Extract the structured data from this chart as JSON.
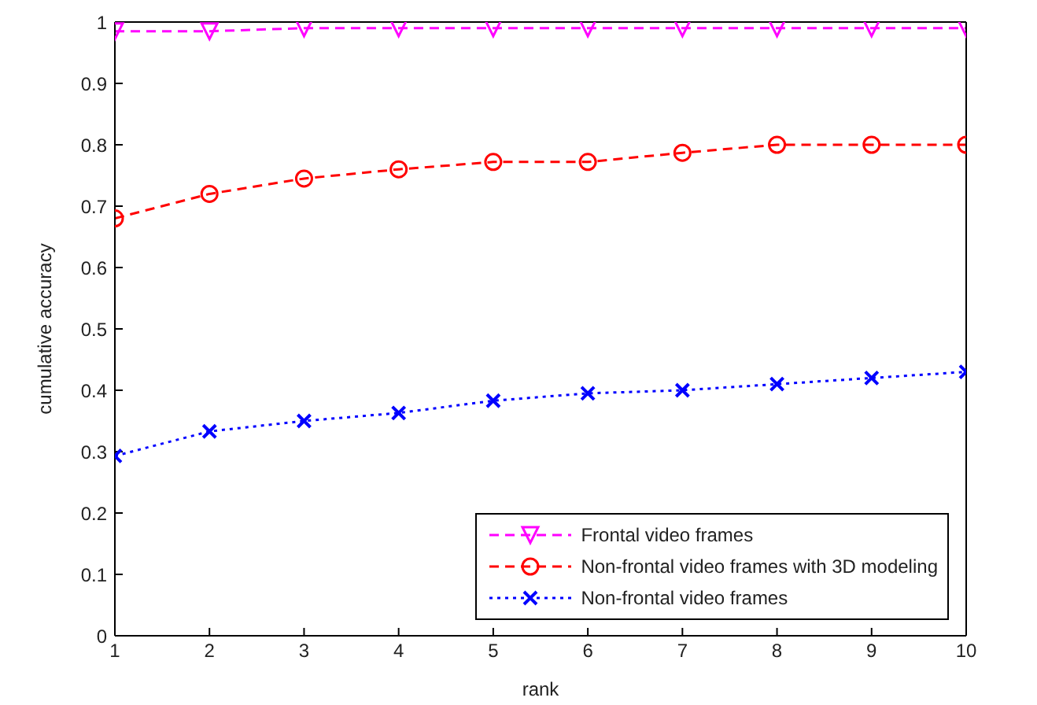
{
  "chart_data": {
    "type": "line",
    "xlabel": "rank",
    "ylabel": "cumulative accuracy",
    "x": [
      1,
      2,
      3,
      4,
      5,
      6,
      7,
      8,
      9,
      10
    ],
    "series": [
      {
        "name": "Frontal video frames",
        "color": "#ff00ff",
        "marker": "triangle",
        "line_style": "dashed",
        "values": [
          0.985,
          0.985,
          0.99,
          0.99,
          0.99,
          0.99,
          0.99,
          0.99,
          0.99,
          0.99
        ]
      },
      {
        "name": "Non-frontal video frames with 3D modeling",
        "color": "#ff0000",
        "marker": "circle",
        "line_style": "dashed",
        "values": [
          0.68,
          0.72,
          0.745,
          0.76,
          0.772,
          0.772,
          0.787,
          0.8,
          0.8,
          0.8
        ]
      },
      {
        "name": "Non-frontal video frames",
        "color": "#0000ff",
        "marker": "cross",
        "line_style": "dotted",
        "values": [
          0.293,
          0.333,
          0.35,
          0.363,
          0.383,
          0.395,
          0.4,
          0.41,
          0.42,
          0.43
        ]
      }
    ],
    "xlim": [
      1,
      10
    ],
    "xticks": [
      1,
      2,
      3,
      4,
      5,
      6,
      7,
      8,
      9,
      10
    ],
    "ylim": [
      0,
      1
    ],
    "yticks": [
      0,
      0.1,
      0.2,
      0.3,
      0.4,
      0.5,
      0.6,
      0.7,
      0.8,
      0.9,
      1
    ],
    "grid": false,
    "legend": "bottom right"
  }
}
